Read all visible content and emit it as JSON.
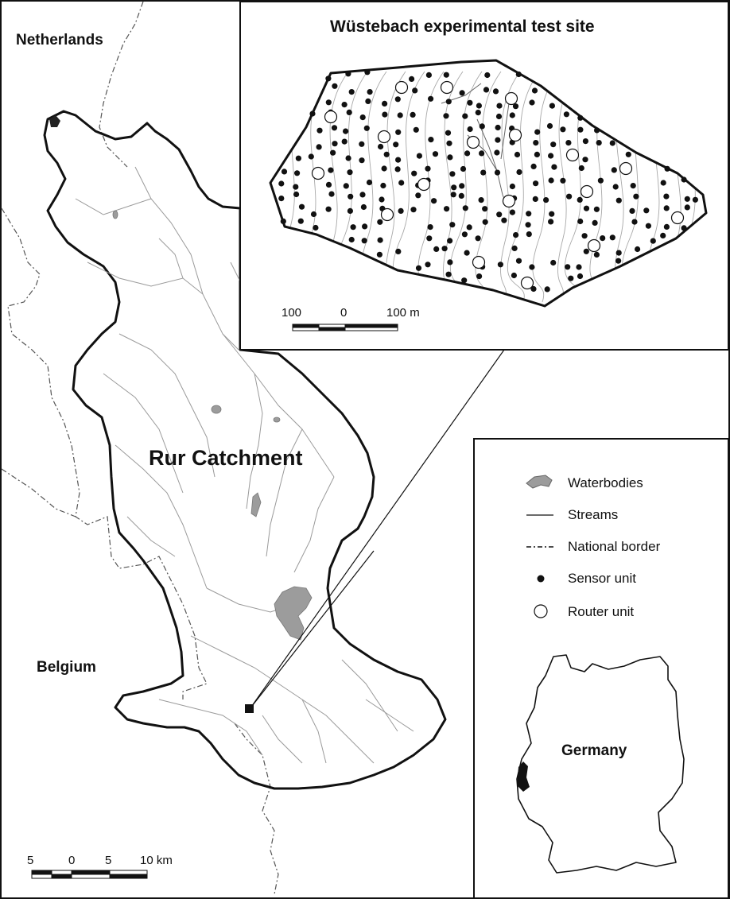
{
  "labels": {
    "netherlands": "Netherlands",
    "belgium": "Belgium",
    "germany": "Germany",
    "catchment": "Rur Catchment",
    "inset_title": "Wüstebach experimental test site"
  },
  "main_scale": {
    "ticks": [
      "5",
      "0",
      "5",
      "10 km"
    ]
  },
  "inset_scale": {
    "ticks": [
      "100",
      "0",
      "100 m"
    ]
  },
  "legend": {
    "items": [
      {
        "symbol": "waterbody-icon",
        "label": "Waterbodies"
      },
      {
        "symbol": "stream-line-icon",
        "label": "Streams"
      },
      {
        "symbol": "dashed-border-icon",
        "label": "National border"
      },
      {
        "symbol": "filled-dot-icon",
        "label": "Sensor unit"
      },
      {
        "symbol": "hollow-circle-icon",
        "label": "Router unit"
      }
    ]
  },
  "colors": {
    "outline": "#111111",
    "stream": "#9a9a9a",
    "waterbody": "#9c9c9c",
    "border": "#555555"
  }
}
